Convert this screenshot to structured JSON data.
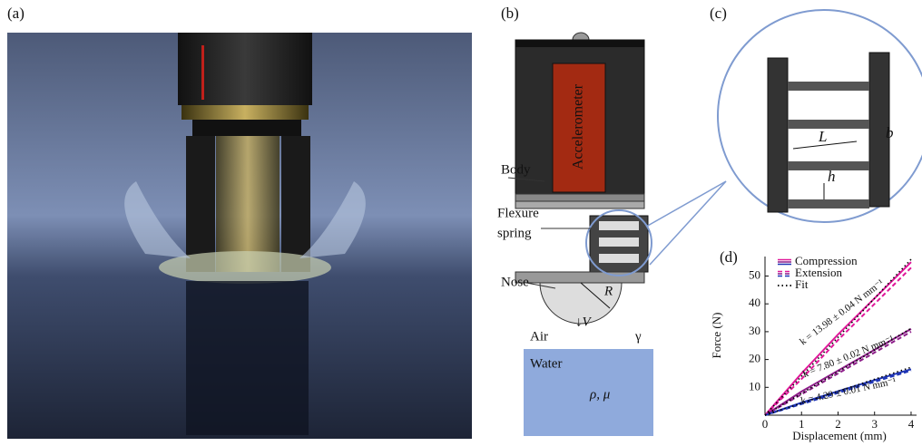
{
  "panel_labels": [
    "(a)",
    "(b)",
    "(c)",
    "(d)"
  ],
  "diagram": {
    "accelerometer": "Accelerometer",
    "body": "Body",
    "flexure": [
      "Flexure",
      "spring"
    ],
    "nose": "Nose",
    "radius": "R",
    "velocity": "↓V",
    "air": "Air",
    "surface_tension": "γ",
    "water": "Water",
    "fluid_props": "ρ, μ"
  },
  "detail": {
    "length": "L",
    "width": "b",
    "thickness": "h"
  },
  "chart_data": {
    "type": "line",
    "x_label": "Displacement (mm)",
    "y_label": "Force (N)",
    "x": [
      0,
      1,
      2,
      3,
      4
    ],
    "xlim": [
      0,
      4.15
    ],
    "ylim": [
      0,
      57
    ],
    "xticks": [
      0,
      1,
      2,
      3,
      4
    ],
    "yticks": [
      10,
      20,
      30,
      40,
      50
    ],
    "series": [
      {
        "name": "Compression",
        "dash": "solid",
        "lines": [
          {
            "color": "#e0189a",
            "values": [
              0,
              15,
              29,
              42,
              55
            ]
          },
          {
            "color": "#8e1e8a",
            "values": [
              0,
              8.5,
              16,
              23.5,
              31
            ]
          },
          {
            "color": "#1f35b5",
            "values": [
              0,
              4.5,
              8.6,
              12.6,
              16.5
            ]
          }
        ]
      },
      {
        "name": "Extension",
        "dash": "dashed",
        "lines": [
          {
            "color": "#e0189a",
            "values": [
              0,
              13,
              27,
              40,
              53
            ]
          },
          {
            "color": "#8e1e8a",
            "values": [
              0,
              7.5,
              15,
              22.5,
              30
            ]
          },
          {
            "color": "#1f35b5",
            "values": [
              0,
              4,
              8,
              12,
              16
            ]
          }
        ]
      },
      {
        "name": "Fit",
        "dash": "dotted",
        "lines": [
          {
            "color": "#000000",
            "values": [
              0,
              14,
              28,
              42,
              56
            ]
          },
          {
            "color": "#000000",
            "values": [
              0,
              7.8,
              15.6,
              23.4,
              31.2
            ]
          },
          {
            "color": "#000000",
            "values": [
              0,
              4.3,
              8.6,
              12.9,
              17.2
            ]
          }
        ]
      }
    ],
    "annotations": [
      "k = 13.98 ± 0.04 N mm⁻¹",
      "k = 7.80 ± 0.02 N mm⁻¹",
      "k = 4.29 ± 0.01 N mm⁻¹"
    ]
  }
}
